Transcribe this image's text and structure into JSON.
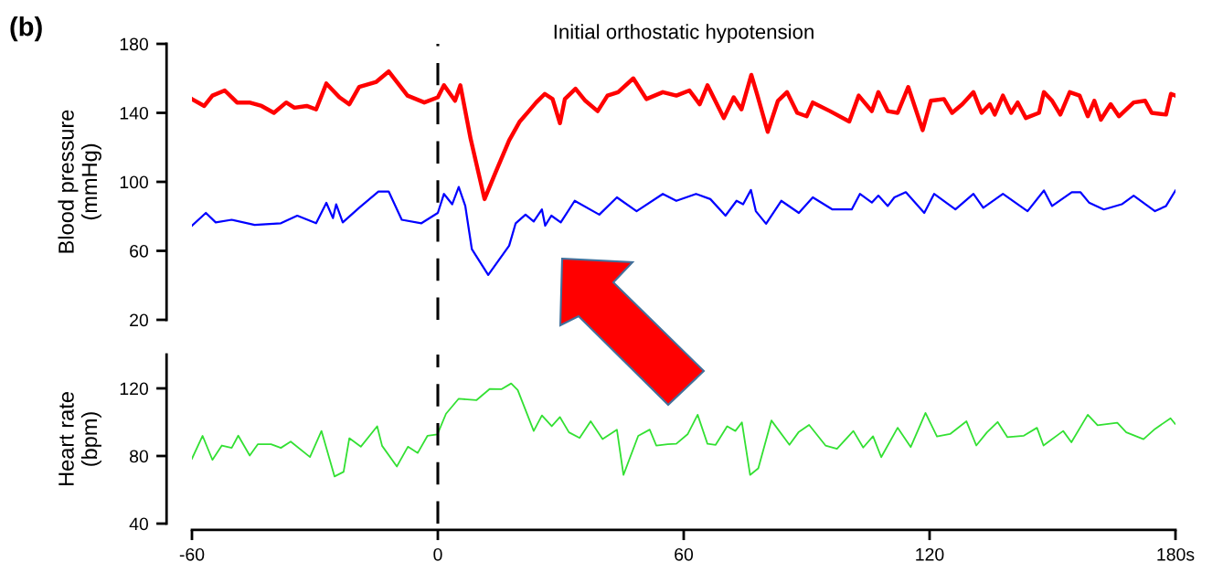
{
  "chart_data": [
    {
      "type": "line",
      "title": "Initial orthostatic hypotension",
      "ylabel": "Blood pressure\n(mmHg)",
      "annotations": [
        "(b)"
      ],
      "xlim": [
        -60,
        180
      ],
      "ylim": [
        20,
        180
      ],
      "yticks": [
        20,
        60,
        100,
        140,
        180
      ],
      "tick_labels": "y",
      "grid": false,
      "legend": false,
      "marker": "none",
      "line_style": "solid",
      "ref_lines": [
        {
          "axis": "x",
          "value": 0,
          "label": null,
          "color": "#000000",
          "line_style": "dashed"
        }
      ],
      "series": [
        {
          "color": "#ff0000",
          "x": [
            -60,
            -57,
            -55,
            -52,
            -49,
            -46,
            -43,
            -40,
            -37,
            -35,
            -32,
            -29.7,
            -27.2,
            -24,
            -21.6,
            -19.2,
            -15,
            -12,
            -7.4,
            -3.3,
            0,
            1.5,
            4.2,
            5.5,
            8,
            11.4,
            14,
            17.4,
            20,
            22.2,
            24,
            26.1,
            28,
            29.8,
            31,
            33.6,
            36,
            39,
            41.4,
            44,
            47.7,
            50.9,
            54.9,
            58.2,
            61.4,
            63.9,
            65.8,
            69.8,
            72.2,
            74.1,
            76.5,
            78,
            80.5,
            83,
            85.2,
            87.7,
            90,
            91.5,
            95.7,
            100.4,
            102.7,
            105.9,
            107.5,
            109.8,
            112.2,
            114.8,
            118.3,
            120.3,
            123.5,
            125.5,
            128,
            130.7,
            132.7,
            134.7,
            135.9,
            137.9,
            139.9,
            141.5,
            143.5,
            146.7,
            147.9,
            149.9,
            151.9,
            154.2,
            156.6,
            158.6,
            160.2,
            161.8,
            164.2,
            166.2,
            169.8,
            172.6,
            174.2,
            177.7,
            178.9,
            180
          ],
          "values": [
            148,
            144,
            150,
            153,
            146,
            146,
            144,
            140,
            146,
            143,
            144,
            142,
            157,
            149,
            145,
            155,
            158,
            164,
            150,
            146,
            149,
            156,
            147,
            156,
            125,
            90,
            105,
            124,
            135,
            141,
            146,
            151,
            148,
            134,
            148,
            154,
            147,
            141,
            150,
            152,
            160,
            148,
            152,
            150,
            153,
            145,
            156,
            137,
            149,
            142,
            162,
            150,
            129,
            147,
            152,
            140,
            138,
            146,
            141,
            135,
            150,
            141,
            152,
            141,
            140,
            155,
            130,
            147,
            148,
            140,
            145,
            152,
            140,
            145,
            139,
            150,
            140,
            146,
            137,
            140,
            152,
            147,
            139,
            152,
            150,
            138,
            147,
            136,
            145,
            138,
            146,
            147,
            140,
            139,
            151,
            150
          ]
        },
        {
          "color": "#0000ff",
          "x": [
            -60,
            -56.6,
            -54.2,
            -50.3,
            -44.7,
            -38.3,
            -34.3,
            -29.7,
            -27.2,
            -25.6,
            -24.8,
            -23.2,
            -19.2,
            -14.5,
            -12,
            -8.8,
            -4,
            0,
            1.5,
            3.5,
            5.1,
            6.7,
            8.3,
            12.3,
            17.4,
            19,
            21.4,
            23.4,
            25.4,
            26.2,
            27.7,
            30,
            33.4,
            39.4,
            43.7,
            48.5,
            54.9,
            58.2,
            63,
            66.5,
            70.2,
            72.9,
            74.5,
            76.4,
            77.6,
            80.1,
            83.8,
            88.1,
            91.5,
            96.3,
            101,
            103,
            105.9,
            107.5,
            109.8,
            111.4,
            114.2,
            118.7,
            121.1,
            126.3,
            130.7,
            133.1,
            137.9,
            143.9,
            147.9,
            149.9,
            154.7,
            156.8,
            158.9,
            162.5,
            166.9,
            169.8,
            175,
            177.7,
            180
          ],
          "values": [
            74.6,
            82,
            76.5,
            78,
            75,
            76,
            80.4,
            76,
            87.8,
            79,
            87,
            76.5,
            85,
            94.4,
            94.4,
            78,
            76,
            82,
            93,
            87,
            97,
            86,
            61,
            46,
            63,
            76,
            81,
            77,
            84,
            74.6,
            80.4,
            76.5,
            89,
            81,
            91,
            83,
            93,
            89,
            93,
            90,
            80.4,
            89,
            87,
            95.3,
            83,
            75.7,
            89,
            82,
            91,
            84,
            84,
            93,
            88,
            92,
            86,
            91,
            94,
            82,
            93,
            84,
            93,
            85,
            93,
            83,
            95,
            86,
            94,
            94,
            88,
            84,
            87,
            92,
            83,
            86,
            95
          ]
        }
      ]
    },
    {
      "type": "line",
      "xlabel": null,
      "ylabel": "Heart rate\n(bpm)",
      "xlim": [
        -60,
        180
      ],
      "xticks": [
        -60,
        0,
        60,
        120,
        {
          "value": 180,
          "label": "180s"
        }
      ],
      "ylim": [
        40,
        140
      ],
      "yticks": [
        40,
        80,
        120
      ],
      "grid": false,
      "legend": false,
      "marker": "none",
      "line_style": "solid",
      "ref_lines": [
        {
          "axis": "x",
          "value": 0,
          "label": null,
          "color": "#000000",
          "line_style": "dashed"
        }
      ],
      "series": [
        {
          "color": "#33e033",
          "x": [
            -60,
            -57.4,
            -55,
            -52.7,
            -50.3,
            -48.7,
            -45.9,
            -43.9,
            -40.7,
            -38.3,
            -35.9,
            -31.2,
            -28.4,
            -25.2,
            -23,
            -21.6,
            -18.8,
            -14.8,
            -13.6,
            -10,
            -7.3,
            -4.9,
            -2.5,
            -0.1,
            2,
            5.1,
            9.4,
            12.7,
            15.5,
            17.9,
            19.5,
            23.4,
            25.4,
            27.8,
            29.8,
            32,
            34.6,
            37.3,
            40.2,
            43.7,
            45.3,
            48.9,
            51.7,
            53.3,
            56.1,
            58.2,
            61,
            63.4,
            65.8,
            67.8,
            70.6,
            72.6,
            74.2,
            76.2,
            78.2,
            81.4,
            85.8,
            88,
            90.6,
            94.6,
            97.4,
            101.4,
            103.8,
            106.2,
            108.2,
            112.2,
            115.4,
            119,
            121.8,
            125,
            129,
            131.4,
            134,
            136.6,
            139,
            143,
            146.2,
            147.8,
            152.6,
            154.6,
            158.6,
            161,
            165.8,
            168,
            172.2,
            175,
            178.8,
            179.9
          ],
          "values": [
            78.4,
            91.9,
            77.7,
            86.2,
            84.8,
            92,
            80.3,
            87,
            87,
            84.8,
            88.5,
            79.4,
            94.8,
            67.9,
            70.6,
            90.5,
            85.5,
            97.6,
            86,
            73.8,
            85.5,
            81.8,
            92,
            92.8,
            105,
            113.9,
            113,
            119.7,
            119.5,
            122.9,
            119,
            94.8,
            104,
            97.6,
            103,
            94,
            90.7,
            100.5,
            90,
            95.6,
            68.8,
            91.9,
            95.6,
            86.2,
            87,
            87.2,
            93,
            104.4,
            87.2,
            86.6,
            97.6,
            94.8,
            99.9,
            68.8,
            72.7,
            101,
            86.6,
            94,
            98.4,
            86.2,
            84.3,
            94.8,
            85,
            91.7,
            79.3,
            96.7,
            85.3,
            105.5,
            91.5,
            93,
            100.5,
            86.2,
            94,
            100.1,
            91.1,
            92,
            96.7,
            86.2,
            94.8,
            88.1,
            104.4,
            98.2,
            99.7,
            94,
            89.9,
            96,
            102.3,
            99
          ]
        }
      ]
    }
  ]
}
